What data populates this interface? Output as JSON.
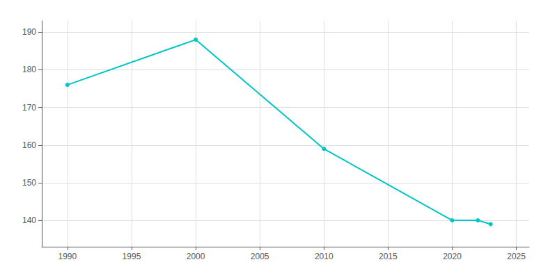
{
  "chart_data": {
    "type": "line",
    "x": [
      1990,
      2000,
      2010,
      2020,
      2022,
      2023
    ],
    "values": [
      176,
      188,
      159,
      140,
      140,
      139
    ],
    "color": "#00C5C5",
    "marker": "circle",
    "xlim": [
      1988,
      2026
    ],
    "ylim": [
      133,
      193
    ],
    "xticks": [
      1990,
      1995,
      2000,
      2005,
      2010,
      2015,
      2020,
      2025
    ],
    "yticks": [
      140,
      150,
      160,
      170,
      180,
      190
    ],
    "grid": true
  }
}
